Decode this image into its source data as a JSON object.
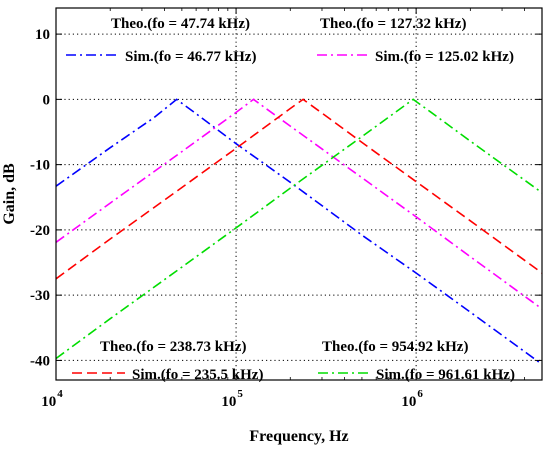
{
  "chart_data": {
    "type": "line",
    "xlabel": "Frequency, Hz",
    "ylabel": "Gain, dB",
    "xscale": "log",
    "xlim": [
      10000,
      5000000
    ],
    "ylim": [
      -43,
      14
    ],
    "grid": true,
    "x_ticks": [
      {
        "value": 10000,
        "base": "10",
        "exp": "4"
      },
      {
        "value": 100000,
        "base": "10",
        "exp": "5"
      },
      {
        "value": 1000000,
        "base": "10",
        "exp": "6"
      }
    ],
    "y_ticks": [
      {
        "value": 10,
        "label": "10"
      },
      {
        "value": 0,
        "label": "0"
      },
      {
        "value": -10,
        "label": "-10"
      },
      {
        "value": -20,
        "label": "-20"
      },
      {
        "value": -30,
        "label": "-30"
      },
      {
        "value": -40,
        "label": "-40"
      }
    ],
    "series": [
      {
        "name": "Sim.(fo = 46.77 kHz)",
        "theo_label": "Theo.(fo = 47.74 kHz)",
        "fo_hz": 46770,
        "color": "#0000ff",
        "dash": "dashdot",
        "x": [
          10000,
          20000,
          35000,
          46770,
          60000,
          100000,
          200000,
          500000,
          1000000,
          2000000,
          5000000
        ],
        "y": [
          -13.3,
          -7.4,
          -2.8,
          0,
          -2.2,
          -6.8,
          -12.7,
          -20.8,
          -26.6,
          -32.6,
          -40.6
        ]
      },
      {
        "name": "Sim.(fo = 125.02 kHz)",
        "theo_label": "Theo.(fo = 127.32 kHz)",
        "fo_hz": 125020,
        "color": "#ff00ff",
        "dash": "dashdot",
        "x": [
          10000,
          20000,
          50000,
          100000,
          125020,
          150000,
          200000,
          500000,
          1000000,
          2000000,
          5000000
        ],
        "y": [
          -21.9,
          -15.9,
          -8.0,
          -2.0,
          0,
          -1.6,
          -4.1,
          -12.0,
          -18.0,
          -24.1,
          -32.1
        ]
      },
      {
        "name": "Sim.(fo = 235.5 kHz)",
        "theo_label": "Theo.(fo = 238.73 kHz)",
        "fo_hz": 235500,
        "color": "#ff0000",
        "dash": "dash",
        "x": [
          10000,
          20000,
          50000,
          100000,
          200000,
          235500,
          300000,
          500000,
          1000000,
          2000000,
          5000000
        ],
        "y": [
          -27.5,
          -21.4,
          -13.5,
          -7.5,
          -1.4,
          0,
          -2.1,
          -6.6,
          -12.6,
          -18.6,
          -26.6
        ]
      },
      {
        "name": "Sim.(fo = 961.61 kHz)",
        "theo_label": "Theo.(fo = 954.92 kHz)",
        "fo_hz": 961610,
        "color": "#00dd00",
        "dash": "dashdot",
        "x": [
          10000,
          20000,
          50000,
          100000,
          200000,
          500000,
          961610,
          1200000,
          2000000,
          5000000
        ],
        "y": [
          -39.7,
          -33.6,
          -25.7,
          -19.7,
          -13.6,
          -5.7,
          0,
          -1.9,
          -6.4,
          -14.3
        ]
      }
    ]
  }
}
